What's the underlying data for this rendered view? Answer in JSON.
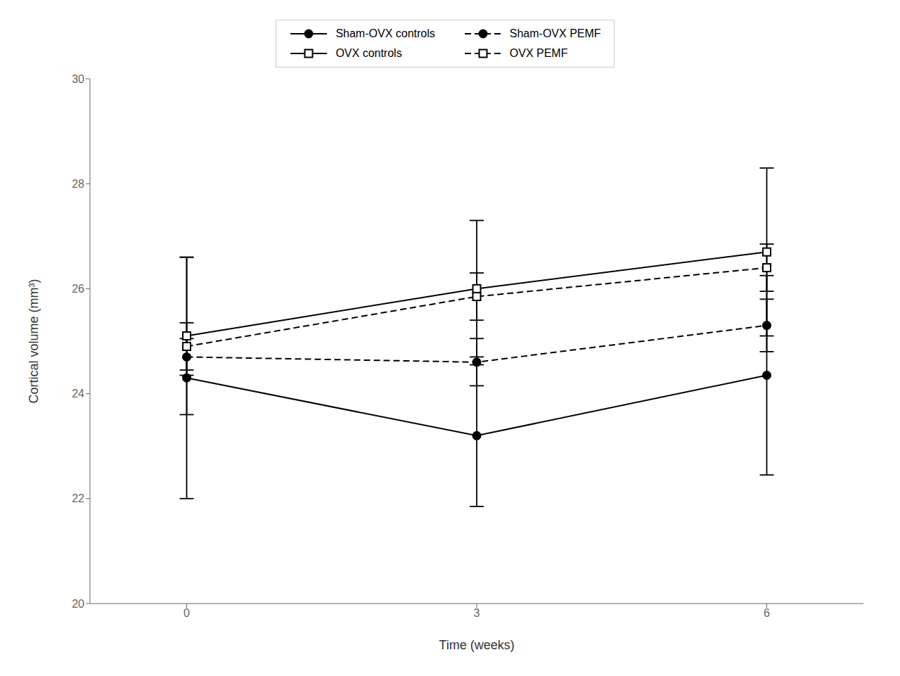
{
  "chart_data": {
    "type": "line",
    "xlabel": "Time (weeks)",
    "ylabel": "Cortical volume (mm³)",
    "x": [
      0,
      3,
      6
    ],
    "xlim": [
      -1,
      7
    ],
    "xticks": [
      0,
      3,
      6
    ],
    "ylim": [
      20,
      30
    ],
    "yticks": [
      20,
      22,
      24,
      26,
      28,
      30
    ],
    "grid": false,
    "legend": "top",
    "series": [
      {
        "name": "Sham-OVX controls",
        "color": "#000000",
        "marker": "circle",
        "line_style": "solid",
        "values": [
          24.3,
          23.2,
          24.35
        ],
        "errors": [
          2.3,
          1.35,
          1.9
        ]
      },
      {
        "name": "Sham-OVX PEMF",
        "color": "#000000",
        "marker": "circle",
        "line_style": "dashed",
        "values": [
          24.7,
          24.6,
          25.3
        ],
        "errors": [
          0.35,
          0.45,
          0.5
        ]
      },
      {
        "name": "OVX controls",
        "color": "#000000",
        "marker": "open-square",
        "line_style": "solid",
        "values": [
          25.1,
          26.0,
          26.7
        ],
        "errors": [
          1.5,
          1.3,
          1.6
        ]
      },
      {
        "name": "OVX PEMF",
        "color": "#000000",
        "marker": "open-square",
        "line_style": "dashed",
        "values": [
          24.9,
          25.85,
          26.4
        ],
        "errors": [
          0.45,
          0.45,
          0.45
        ]
      }
    ]
  }
}
